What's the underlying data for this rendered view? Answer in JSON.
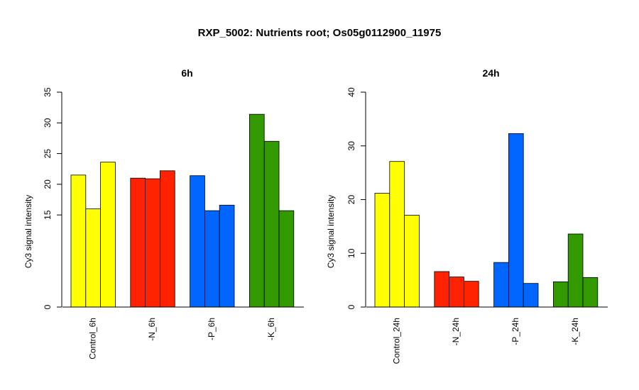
{
  "title": "RXP_5002: Nutrients root; Os05g0112900_11975",
  "chart_data": [
    {
      "type": "bar",
      "title": "6h",
      "ylabel": "Cy3 signal intensity",
      "xlabel": "",
      "ylim": [
        0,
        35
      ],
      "y_ticks": [
        "0",
        "15",
        "20",
        "25",
        "30",
        "35"
      ],
      "groups": [
        {
          "label": "Control_6h",
          "color": "#ffff00",
          "values": [
            21.5,
            16.0,
            23.6
          ]
        },
        {
          "label": "-N_6h",
          "color": "#ff2200",
          "values": [
            21.0,
            20.9,
            22.2
          ]
        },
        {
          "label": "-P_6h",
          "color": "#0066ff",
          "values": [
            21.4,
            15.7,
            16.6
          ]
        },
        {
          "label": "-K_6h",
          "color": "#339900",
          "values": [
            31.4,
            27.0,
            15.7
          ]
        }
      ],
      "grid": false
    },
    {
      "type": "bar",
      "title": "24h",
      "ylabel": "Cy3 signal intensity",
      "xlabel": "",
      "ylim": [
        0,
        40
      ],
      "y_ticks": [
        "0",
        "10",
        "20",
        "30",
        "40"
      ],
      "groups": [
        {
          "label": "Control_24h",
          "color": "#ffff00",
          "values": [
            21.2,
            27.1,
            17.1
          ]
        },
        {
          "label": "-N_24h",
          "color": "#ff2200",
          "values": [
            6.6,
            5.6,
            4.8
          ]
        },
        {
          "label": "-P_24h",
          "color": "#0066ff",
          "values": [
            8.3,
            32.3,
            4.4
          ]
        },
        {
          "label": "-K_24h",
          "color": "#339900",
          "values": [
            4.7,
            13.6,
            5.5
          ]
        }
      ],
      "grid": false
    }
  ]
}
